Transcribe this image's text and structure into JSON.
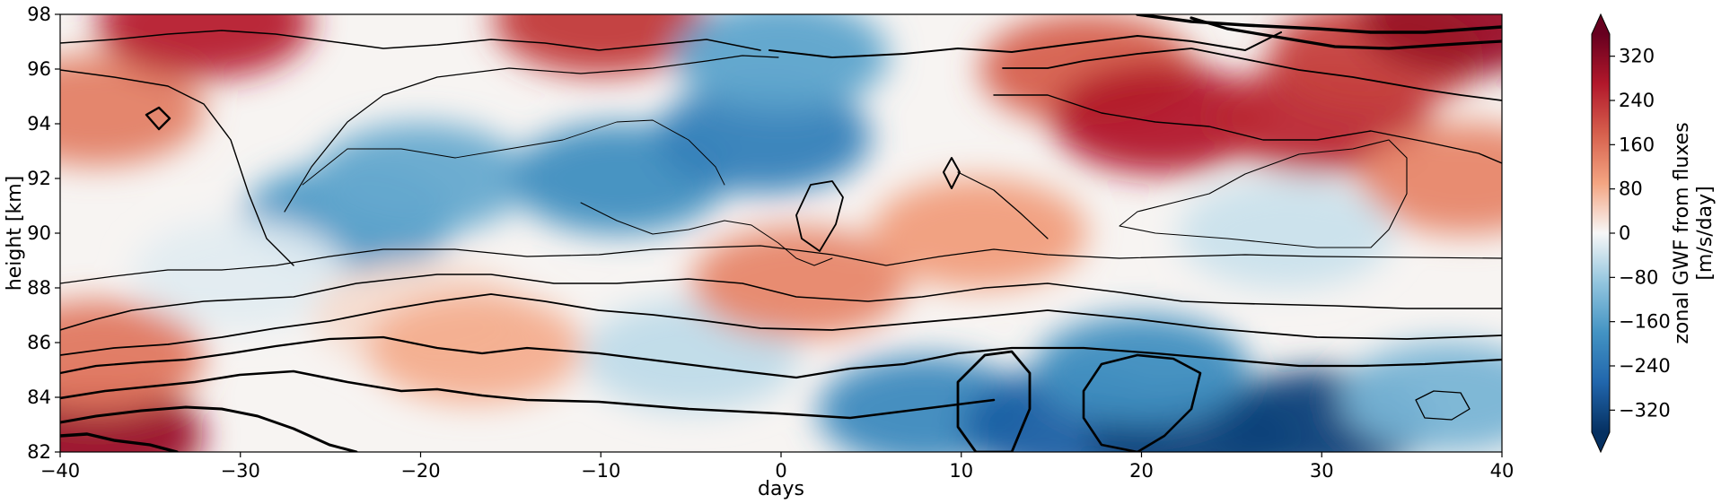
{
  "chart_data": {
    "type": "heatmap",
    "title": "",
    "xlabel": "days",
    "ylabel": "height [km]",
    "xlim": [
      -40,
      40
    ],
    "ylim": [
      82,
      98
    ],
    "xticks": [
      -40,
      -30,
      -20,
      -10,
      0,
      10,
      20,
      30,
      40
    ],
    "yticks": [
      82,
      84,
      86,
      88,
      90,
      92,
      94,
      96,
      98
    ],
    "colorbar": {
      "label_line1": "zonal GWF from fluxes",
      "label_line2": "[m/s/day]",
      "ticks": [
        -320,
        -240,
        -160,
        -80,
        0,
        80,
        160,
        240,
        320
      ],
      "range": [
        -360,
        360
      ],
      "colormap": "RdBu_r",
      "extend": "both"
    },
    "fill_features": [
      {
        "x": -38,
        "y": 82.6,
        "value": 300
      },
      {
        "x": -38,
        "y": 85.5,
        "value": 150
      },
      {
        "x": -38,
        "y": 94.5,
        "value": 140
      },
      {
        "x": -32,
        "y": 97.7,
        "value": 260
      },
      {
        "x": -10,
        "y": 97.8,
        "value": 230
      },
      {
        "x": -24,
        "y": 90.5,
        "value": -170
      },
      {
        "x": -20,
        "y": 92,
        "value": -140
      },
      {
        "x": -9,
        "y": 92,
        "value": -190
      },
      {
        "x": -1,
        "y": 93.5,
        "value": -220
      },
      {
        "x": 0,
        "y": 96.5,
        "value": -150
      },
      {
        "x": -30,
        "y": 88.5,
        "value": -20
      },
      {
        "x": -20,
        "y": 87,
        "value": 30
      },
      {
        "x": -17,
        "y": 85.8,
        "value": 80
      },
      {
        "x": -5,
        "y": 85.5,
        "value": -50
      },
      {
        "x": 1,
        "y": 88.2,
        "value": 130
      },
      {
        "x": 11,
        "y": 90,
        "value": 100
      },
      {
        "x": 17,
        "y": 96,
        "value": 180
      },
      {
        "x": 21,
        "y": 94.2,
        "value": 270
      },
      {
        "x": 30,
        "y": 94.2,
        "value": 250
      },
      {
        "x": 33,
        "y": 96.5,
        "value": 220
      },
      {
        "x": 38,
        "y": 97.8,
        "value": 300
      },
      {
        "x": 38,
        "y": 92,
        "value": 130
      },
      {
        "x": 28,
        "y": 90,
        "value": -40
      },
      {
        "x": 8,
        "y": 83.5,
        "value": -200
      },
      {
        "x": 16,
        "y": 83,
        "value": -280
      },
      {
        "x": 23,
        "y": 82.5,
        "value": -330
      },
      {
        "x": 30,
        "y": 83,
        "value": -330
      },
      {
        "x": 20,
        "y": 85,
        "value": -190
      },
      {
        "x": 37,
        "y": 84,
        "value": -120
      }
    ]
  }
}
